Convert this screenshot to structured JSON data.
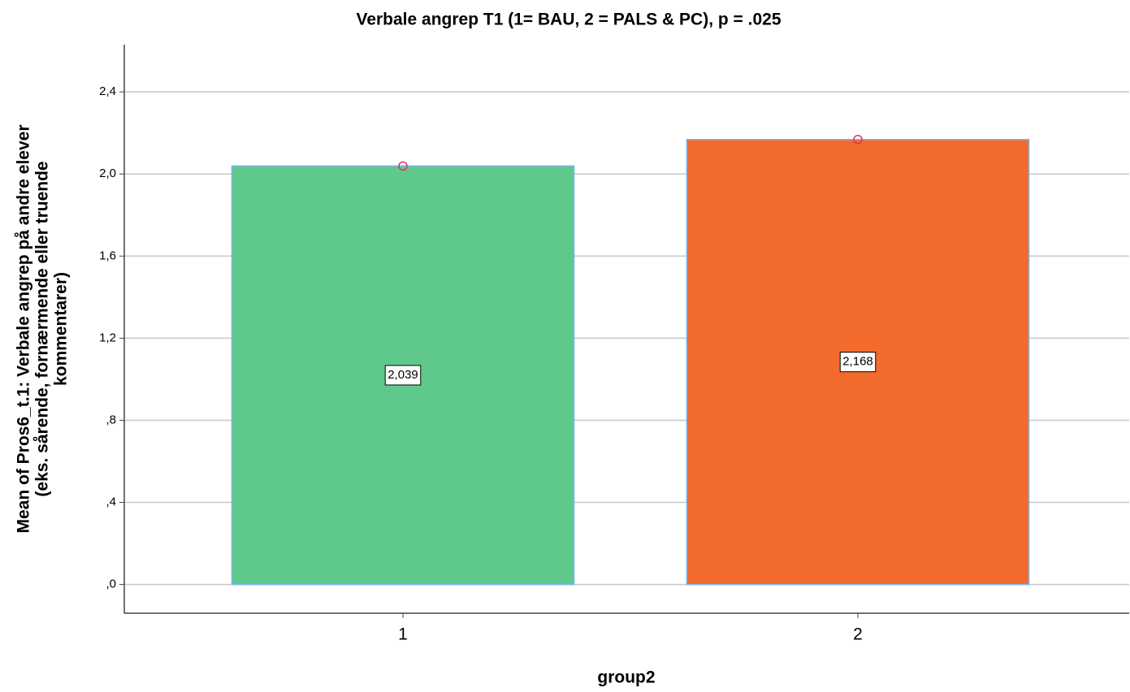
{
  "chart_data": {
    "type": "bar",
    "title": "Verbale angrep T1 (1= BAU, 2 = PALS & PC), p = .025",
    "xlabel": "group2",
    "ylabel": [
      "Mean of Pros6_t.1: Verbale angrep på andre elever",
      "(eks. sårende, fornærmende eller truende",
      "kommentarer)"
    ],
    "categories": [
      "1",
      "2"
    ],
    "series": [
      {
        "values": [
          2.039,
          2.168
        ],
        "value_labels": [
          "2,039",
          "2,168"
        ],
        "colors": [
          "#5ec98b",
          "#f26a2c"
        ]
      }
    ],
    "ylim": [
      -0.14,
      2.63
    ],
    "yticks": [
      {
        "value": 0,
        "label": ",0"
      },
      {
        "value": 0.4,
        "label": ",4"
      },
      {
        "value": 0.8,
        "label": ",8"
      },
      {
        "value": 1.2,
        "label": "1,2"
      },
      {
        "value": 1.6,
        "label": "1,6"
      },
      {
        "value": 2.0,
        "label": "2,0"
      },
      {
        "value": 2.4,
        "label": "2,4"
      }
    ],
    "grid": true
  }
}
